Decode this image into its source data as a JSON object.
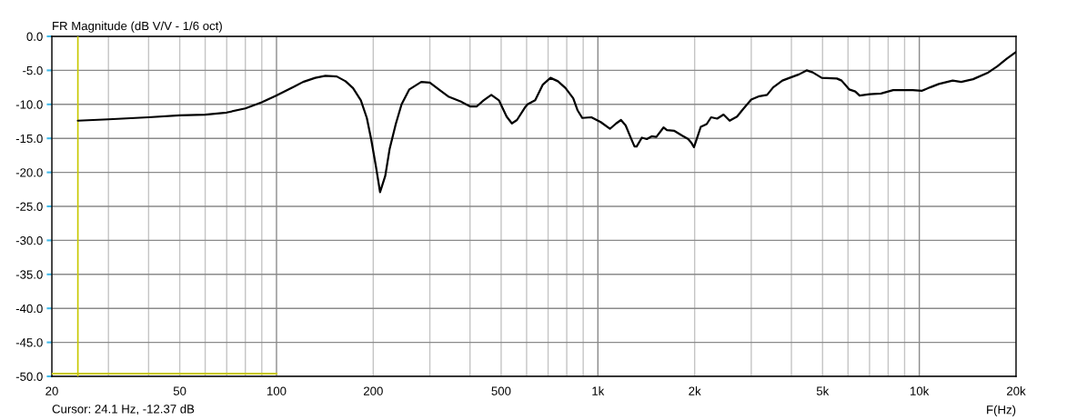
{
  "chart_data": {
    "type": "line",
    "title": "FR Magnitude (dB V/V - 1/6 oct)",
    "xlabel": "F(Hz)",
    "annotations": [
      "Cursor: 24.1 Hz, -12.37 dB"
    ],
    "log": "x",
    "grid": true,
    "series": [
      {
        "color": "#000000",
        "x": [
          24.1,
          30,
          40,
          50,
          60,
          70,
          80,
          90,
          100,
          113.5,
          121,
          132,
          142,
          154,
          164,
          173,
          183,
          191,
          197,
          204,
          210,
          218,
          225,
          235,
          245,
          259,
          282,
          300,
          322,
          344,
          375,
          400,
          420,
          441,
          466,
          492,
          520,
          540,
          560,
          592,
          604,
          638,
          674,
          712,
          751,
          793,
          838,
          865,
          894,
          954,
          1020,
          1090,
          1140,
          1180,
          1220,
          1270,
          1300,
          1320,
          1370,
          1420,
          1470,
          1520,
          1600,
          1640,
          1730,
          1830,
          1910,
          1950,
          1990,
          2020,
          2090,
          2180,
          2250,
          2350,
          2460,
          2570,
          2710,
          2830,
          3000,
          3180,
          3360,
          3510,
          3750,
          4000,
          4220,
          4460,
          4660,
          4970,
          5540,
          5730,
          6050,
          6320,
          6520,
          7000,
          7600,
          8290,
          9540,
          10200,
          10800,
          11500,
          12700,
          13500,
          14700,
          16400,
          17500,
          18700,
          20000
        ],
        "values": [
          -12.4,
          -12.2,
          -11.9,
          -11.6,
          -11.5,
          -11.2,
          -10.6,
          -9.7,
          -8.7,
          -7.4,
          -6.7,
          -6.1,
          -5.8,
          -5.9,
          -6.6,
          -7.6,
          -9.4,
          -12.0,
          -15.1,
          -19.2,
          -22.9,
          -20.5,
          -16.5,
          -12.9,
          -10.0,
          -7.8,
          -6.7,
          -6.8,
          -7.9,
          -8.9,
          -9.6,
          -10.3,
          -10.3,
          -9.4,
          -8.6,
          -9.4,
          -11.8,
          -12.8,
          -12.3,
          -10.5,
          -10.0,
          -9.4,
          -7.1,
          -6.1,
          -6.6,
          -7.6,
          -9.1,
          -10.9,
          -12.0,
          -11.9,
          -12.6,
          -13.6,
          -12.8,
          -12.3,
          -13.1,
          -15.1,
          -16.2,
          -16.2,
          -14.9,
          -15.1,
          -14.7,
          -14.8,
          -13.4,
          -13.8,
          -13.9,
          -14.6,
          -15.1,
          -15.6,
          -16.3,
          -15.4,
          -13.3,
          -12.9,
          -11.9,
          -12.1,
          -11.5,
          -12.4,
          -11.8,
          -10.7,
          -9.3,
          -8.8,
          -8.6,
          -7.5,
          -6.5,
          -6.0,
          -5.6,
          -5.0,
          -5.3,
          -6.1,
          -6.2,
          -6.5,
          -7.8,
          -8.1,
          -8.7,
          -8.5,
          -8.4,
          -7.9,
          -7.9,
          -8.0,
          -7.5,
          -7.0,
          -6.5,
          -6.7,
          -6.3,
          -5.3,
          -4.4,
          -3.3,
          -2.3
        ]
      },
      {
        "color": "#c8c800",
        "x": [
          20,
          100
        ],
        "values": [
          -49.6,
          -49.6
        ]
      }
    ],
    "ref_lines": [
      {
        "axis": "x",
        "value": 24.1,
        "color": "#c8c800"
      }
    ],
    "xlim": [
      20,
      20000
    ],
    "ylim": [
      -50,
      0
    ],
    "xticks": [
      20,
      {
        "value": 30,
        "label": null
      },
      {
        "value": 40,
        "label": null
      },
      50,
      {
        "value": 60,
        "label": null
      },
      {
        "value": 70,
        "label": null
      },
      {
        "value": 80,
        "label": null
      },
      {
        "value": 90,
        "label": null
      },
      100,
      200,
      {
        "value": 300,
        "label": null
      },
      {
        "value": 400,
        "label": null
      },
      500,
      {
        "value": 600,
        "label": null
      },
      {
        "value": 700,
        "label": null
      },
      {
        "value": 800,
        "label": null
      },
      {
        "value": 900,
        "label": null
      },
      {
        "value": 1000,
        "label": "1k"
      },
      {
        "value": 2000,
        "label": "2k"
      },
      {
        "value": 3000,
        "label": null
      },
      {
        "value": 4000,
        "label": null
      },
      {
        "value": 5000,
        "label": "5k"
      },
      {
        "value": 6000,
        "label": null
      },
      {
        "value": 7000,
        "label": null
      },
      {
        "value": 8000,
        "label": null
      },
      {
        "value": 9000,
        "label": null
      },
      {
        "value": 10000,
        "label": "10k"
      },
      {
        "value": 20000,
        "label": "20k"
      }
    ],
    "yticks": [
      {
        "value": 0,
        "label": "0.0"
      },
      {
        "value": -5,
        "label": "-5.0"
      },
      {
        "value": -10,
        "label": "-10.0"
      },
      {
        "value": -15,
        "label": "-15.0"
      },
      {
        "value": -20,
        "label": "-20.0"
      },
      {
        "value": -25,
        "label": "-25.0"
      },
      {
        "value": -30,
        "label": "-30.0"
      },
      {
        "value": -35,
        "label": "-35.0"
      },
      {
        "value": -40,
        "label": "-40.0"
      },
      {
        "value": -45,
        "label": "-45.0"
      },
      {
        "value": -50,
        "label": "-50.0"
      }
    ]
  }
}
